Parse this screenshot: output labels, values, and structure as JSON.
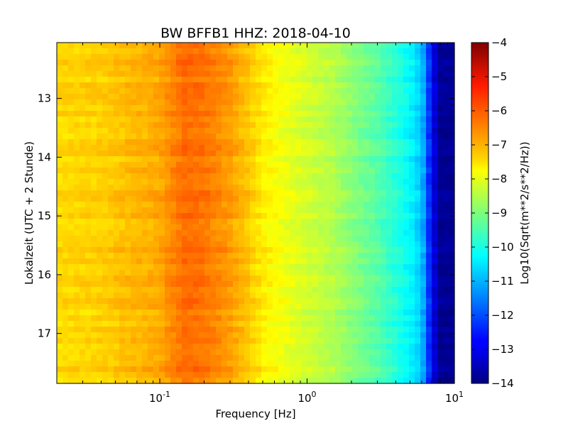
{
  "chart_data": {
    "type": "heatmap",
    "title": "BW BFFB1 HHZ: 2018-04-10",
    "xlabel": "Frequency [Hz]",
    "ylabel": "Lokalzeit (UTC + 2 Stunde)",
    "xscale": "log",
    "xlim": [
      0.02,
      10
    ],
    "ylim": [
      17.85,
      12.05
    ],
    "x_ticks": [
      {
        "value": 0.1,
        "base": "10",
        "exp": "-1"
      },
      {
        "value": 1,
        "base": "10",
        "exp": "0"
      },
      {
        "value": 10,
        "base": "10",
        "exp": "1"
      }
    ],
    "y_ticks": [
      {
        "value": 13,
        "label": "13"
      },
      {
        "value": 14,
        "label": "14"
      },
      {
        "value": 15,
        "label": "15"
      },
      {
        "value": 16,
        "label": "16"
      },
      {
        "value": 17,
        "label": "17"
      }
    ],
    "colormap": "jet",
    "colorbar": {
      "label": "Log10(Sqrt(m**2/s**2/Hz))",
      "range": [
        -14,
        -4
      ],
      "ticks": [
        -4,
        -5,
        -6,
        -7,
        -8,
        -9,
        -10,
        -11,
        -12,
        -13,
        -14
      ],
      "tick_labels": [
        "−4",
        "−5",
        "−6",
        "−7",
        "−8",
        "−9",
        "−10",
        "−11",
        "−12",
        "−13",
        "−14"
      ]
    },
    "spectrum_profile": {
      "frequencies": [
        0.02,
        0.04,
        0.06,
        0.08,
        0.1,
        0.12,
        0.15,
        0.2,
        0.3,
        0.4,
        0.5,
        0.7,
        1,
        1.5,
        2,
        3,
        4,
        5,
        6,
        7,
        8,
        10
      ],
      "values": [
        -7.4,
        -7.3,
        -7.1,
        -7.0,
        -6.9,
        -6.6,
        -6.3,
        -6.4,
        -6.8,
        -7.2,
        -7.6,
        -7.9,
        -8.2,
        -8.5,
        -8.9,
        -9.4,
        -9.9,
        -10.3,
        -10.8,
        -12.8,
        -13.8,
        -13.8
      ]
    },
    "grid": false
  }
}
